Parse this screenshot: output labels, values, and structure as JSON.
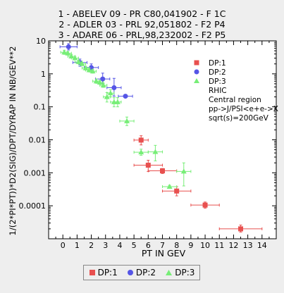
{
  "header": {
    "lines": [
      "1 - ABELEV 09 - PR C80,041902 - F 1C",
      "2 - ADLER 03 - PRL 92,051802 - F2 P4",
      "3 - ADARE 06 - PRL,98,232002 - F2 P5"
    ]
  },
  "colors": {
    "s1": "#e8504f",
    "s2": "#5555e6",
    "s3": "#77ee77",
    "errbar": "#e8504f"
  },
  "chart_data": {
    "type": "scatter",
    "title": "",
    "xlabel": "PT IN GEV",
    "ylabel": "1/(2*PI*PT))*D2(SIG)/DPT/DYRAP IN NB/GEV**2",
    "xlim": [
      -1,
      15
    ],
    "ylim": [
      1e-05,
      10
    ],
    "yscale": "log",
    "xticks": [
      0,
      1,
      2,
      3,
      4,
      5,
      6,
      7,
      8,
      9,
      10,
      11,
      12,
      13,
      14
    ],
    "yticks": [
      10,
      1,
      0.1,
      0.01,
      0.001,
      0.0001
    ],
    "ytick_labels": [
      "10",
      "1",
      "0.1",
      "0.01",
      "0.001",
      "0.0001"
    ],
    "annotations": [
      "RHIC",
      "Central region",
      "pp->J/PSI<e+e->X",
      "sqrt(s)=200GeV"
    ],
    "legend_inner": [
      "DP:1",
      "DP:2",
      "DP:3"
    ],
    "legend_outer": [
      "DP:1",
      "DP:2",
      "DP:3"
    ],
    "series": [
      {
        "name": "DP:1",
        "marker": "square",
        "points": [
          {
            "x": 5.5,
            "y": 0.0098,
            "xerr": 0.5,
            "yerr": [
              0.0028,
              0.0035
            ]
          },
          {
            "x": 6.0,
            "y": 0.0017,
            "xerr": 1.0,
            "yerr": [
              0.0006,
              0.0007
            ]
          },
          {
            "x": 7.0,
            "y": 0.00115,
            "xerr": 1.0,
            "yerr": [
              0.0002,
              0.0002
            ]
          },
          {
            "x": 8.0,
            "y": 0.00028,
            "xerr": 1.0,
            "yerr": [
              8e-05,
              0.0001
            ]
          },
          {
            "x": 10.0,
            "y": 0.000105,
            "xerr": 1.0,
            "yerr": [
              2e-05,
              2.5e-05
            ]
          },
          {
            "x": 12.5,
            "y": 2e-05,
            "xerr": 1.5,
            "yerr": [
              4e-06,
              6e-06
            ]
          }
        ]
      },
      {
        "name": "DP:2",
        "marker": "circle",
        "points": [
          {
            "x": 0.4,
            "y": 6.6,
            "xerr": 0.6,
            "yerr": [
              1.3,
              1.6
            ]
          },
          {
            "x": 1.2,
            "y": 2.2,
            "xerr": 0.5,
            "yerr": [
              0.5,
              0.6
            ]
          },
          {
            "x": 2.0,
            "y": 1.55,
            "xerr": 0.5,
            "yerr": [
              0.35,
              0.45
            ]
          },
          {
            "x": 2.8,
            "y": 0.7,
            "xerr": 0.5,
            "yerr": [
              0.2,
              0.35
            ]
          },
          {
            "x": 3.6,
            "y": 0.38,
            "xerr": 0.5,
            "yerr": [
              0.17,
              0.35
            ]
          },
          {
            "x": 4.4,
            "y": 0.21,
            "xerr": 0.5,
            "yerr": [
              0.0,
              0.0
            ]
          }
        ]
      },
      {
        "name": "DP:3",
        "marker": "triangle",
        "points": [
          {
            "x": 0.1,
            "y": 4.5,
            "xerr": 0.25,
            "yerr": [
              0.6,
              0.7
            ]
          },
          {
            "x": 0.35,
            "y": 4.2,
            "xerr": 0.25,
            "yerr": [
              0.5,
              0.6
            ]
          },
          {
            "x": 0.6,
            "y": 3.4,
            "xerr": 0.25,
            "yerr": [
              0.4,
              0.5
            ]
          },
          {
            "x": 0.85,
            "y": 3.0,
            "xerr": 0.25,
            "yerr": [
              0.3,
              0.4
            ]
          },
          {
            "x": 1.1,
            "y": 2.3,
            "xerr": 0.25,
            "yerr": [
              0.25,
              0.3
            ]
          },
          {
            "x": 1.35,
            "y": 2.0,
            "xerr": 0.25,
            "yerr": [
              0.2,
              0.25
            ]
          },
          {
            "x": 1.6,
            "y": 1.5,
            "xerr": 0.25,
            "yerr": [
              0.2,
              0.2
            ]
          },
          {
            "x": 1.85,
            "y": 1.3,
            "xerr": 0.25,
            "yerr": [
              0.15,
              0.2
            ]
          },
          {
            "x": 2.1,
            "y": 1.2,
            "xerr": 0.25,
            "yerr": [
              0.15,
              0.15
            ]
          },
          {
            "x": 2.35,
            "y": 0.6,
            "xerr": 0.25,
            "yerr": [
              0.08,
              0.1
            ]
          },
          {
            "x": 2.6,
            "y": 0.55,
            "xerr": 0.25,
            "yerr": [
              0.07,
              0.08
            ]
          },
          {
            "x": 2.85,
            "y": 0.45,
            "xerr": 0.25,
            "yerr": [
              0.06,
              0.07
            ]
          },
          {
            "x": 3.1,
            "y": 0.2,
            "xerr": 0.25,
            "yerr": [
              0.06,
              0.07
            ]
          },
          {
            "x": 3.35,
            "y": 0.26,
            "xerr": 0.25,
            "yerr": [
              0.06,
              0.07
            ]
          },
          {
            "x": 3.6,
            "y": 0.14,
            "xerr": 0.25,
            "yerr": [
              0.04,
              0.05
            ]
          },
          {
            "x": 3.85,
            "y": 0.14,
            "xerr": 0.25,
            "yerr": [
              0.04,
              0.05
            ]
          },
          {
            "x": 4.5,
            "y": 0.037,
            "xerr": 0.5,
            "yerr": [
              0.01,
              0.012
            ]
          },
          {
            "x": 5.5,
            "y": 0.0042,
            "xerr": 0.5,
            "yerr": [
              0.0008,
              0.001
            ]
          },
          {
            "x": 6.5,
            "y": 0.0043,
            "xerr": 0.5,
            "yerr": [
              0.002,
              0.0025
            ]
          },
          {
            "x": 7.5,
            "y": 0.00038,
            "xerr": 0.5,
            "yerr": [
              4e-05,
              4e-05
            ]
          },
          {
            "x": 8.5,
            "y": 0.0011,
            "xerr": 0.5,
            "yerr": [
              0.0007,
              0.0009
            ]
          }
        ]
      }
    ]
  }
}
